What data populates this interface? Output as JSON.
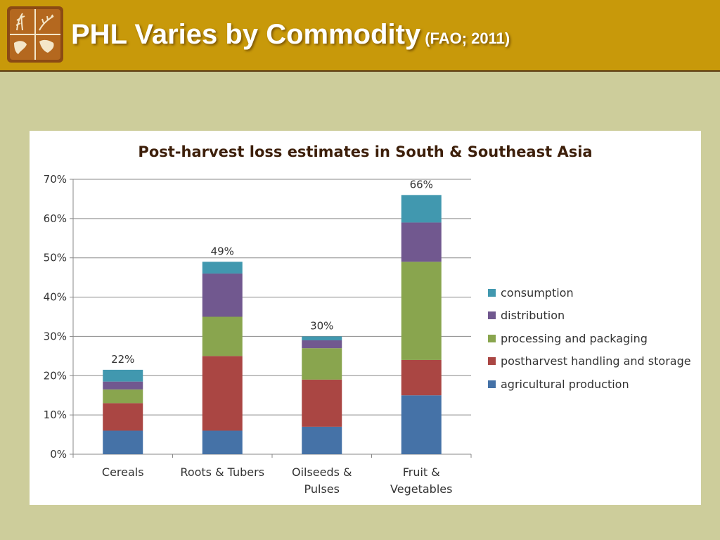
{
  "header": {
    "title": "PHL Varies by Commodity",
    "subtitle": "(FAO; 2011)",
    "background": "#c8990a",
    "logo_icon": "world-map-crop-logo-icon"
  },
  "page_background": "#cdcd9b",
  "chart_data": {
    "type": "bar",
    "stacked": true,
    "title": "Post-harvest loss estimates in South & Southeast Asia",
    "categories": [
      "Cereals",
      "Roots & Tubers",
      "Oilseeds & Pulses",
      "Fruit & Vegetables"
    ],
    "category_labels": [
      [
        "Cereals"
      ],
      [
        "Roots & Tubers"
      ],
      [
        "Oilseeds &",
        "Pulses"
      ],
      [
        "Fruit &",
        "Vegetables"
      ]
    ],
    "series": [
      {
        "name": "agricultural production",
        "color": "#4572a7",
        "values": [
          6,
          6,
          7,
          15
        ]
      },
      {
        "name": "postharvest handling and storage",
        "color": "#aa4643",
        "values": [
          7,
          19,
          12,
          9
        ]
      },
      {
        "name": "processing and packaging",
        "color": "#89a54e",
        "values": [
          3.5,
          10,
          8,
          25
        ]
      },
      {
        "name": "distribution",
        "color": "#71588f",
        "values": [
          2,
          11,
          2,
          10
        ]
      },
      {
        "name": "consumption",
        "color": "#4198af",
        "values": [
          3,
          3,
          1,
          7
        ]
      }
    ],
    "totals": [
      "22%",
      "49%",
      "30%",
      "66%"
    ],
    "ylim": [
      0,
      70
    ],
    "yticks": [
      0,
      10,
      20,
      30,
      40,
      50,
      60,
      70
    ],
    "ytick_labels": [
      "0%",
      "10%",
      "20%",
      "30%",
      "40%",
      "50%",
      "60%",
      "70%"
    ],
    "xlabel": "",
    "ylabel": "",
    "grid": true,
    "legend_position": "right"
  }
}
